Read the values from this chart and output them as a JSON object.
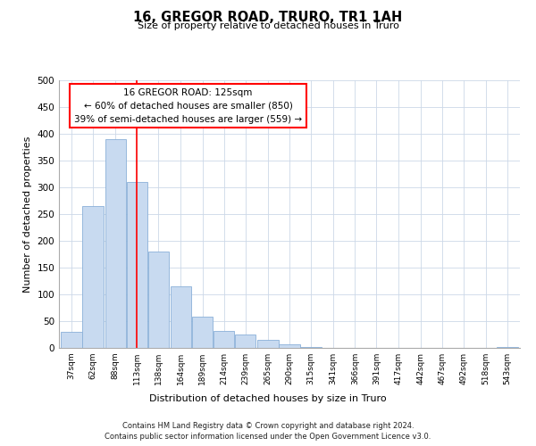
{
  "title": "16, GREGOR ROAD, TRURO, TR1 1AH",
  "subtitle": "Size of property relative to detached houses in Truro",
  "xlabel": "Distribution of detached houses by size in Truro",
  "ylabel": "Number of detached properties",
  "bar_color": "#c8daf0",
  "bar_edge_color": "#8ab0d8",
  "vline_x": 125,
  "vline_color": "red",
  "annotation_title": "16 GREGOR ROAD: 125sqm",
  "annotation_line1": "← 60% of detached houses are smaller (850)",
  "annotation_line2": "39% of semi-detached houses are larger (559) →",
  "annotation_box_color": "white",
  "annotation_box_edge_color": "red",
  "bins_left_edges": [
    37,
    62,
    88,
    113,
    138,
    164,
    189,
    214,
    239,
    265,
    290,
    315,
    341,
    366,
    391,
    417,
    442,
    467,
    492,
    518,
    543
  ],
  "bin_width": 25,
  "bar_heights": [
    30,
    265,
    390,
    310,
    180,
    115,
    58,
    32,
    25,
    15,
    7,
    2,
    0,
    0,
    0,
    0,
    0,
    0,
    0,
    0,
    2
  ],
  "tick_labels": [
    "37sqm",
    "62sqm",
    "88sqm",
    "113sqm",
    "138sqm",
    "164sqm",
    "189sqm",
    "214sqm",
    "239sqm",
    "265sqm",
    "290sqm",
    "315sqm",
    "341sqm",
    "366sqm",
    "391sqm",
    "417sqm",
    "442sqm",
    "467sqm",
    "492sqm",
    "518sqm",
    "543sqm"
  ],
  "ylim": [
    0,
    500
  ],
  "yticks": [
    0,
    50,
    100,
    150,
    200,
    250,
    300,
    350,
    400,
    450,
    500
  ],
  "footer_line1": "Contains HM Land Registry data © Crown copyright and database right 2024.",
  "footer_line2": "Contains public sector information licensed under the Open Government Licence v3.0.",
  "background_color": "#ffffff",
  "grid_color": "#ccd8e8"
}
